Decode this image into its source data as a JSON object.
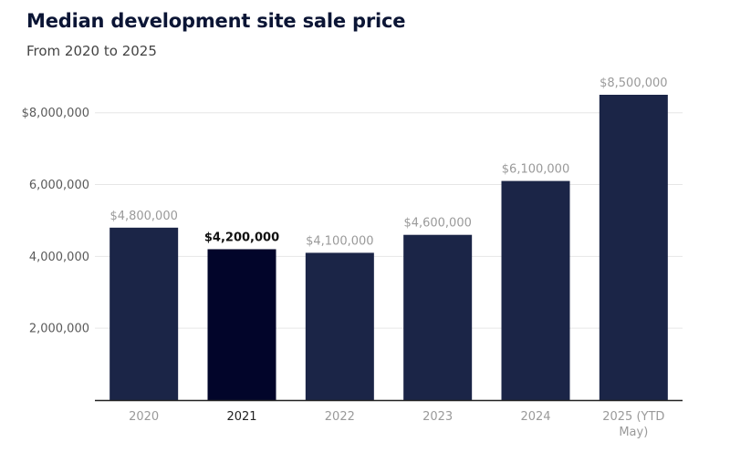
{
  "chart_data": {
    "type": "bar",
    "title": "Median development site sale price",
    "subtitle": "From 2020 to 2025",
    "categories": [
      "2020",
      "2021",
      "2022",
      "2023",
      "2024",
      "2025 (YTD May)"
    ],
    "values": [
      4800000,
      4200000,
      4100000,
      4600000,
      6100000,
      8500000
    ],
    "value_labels": [
      "$4,800,000",
      "$4,200,000",
      "$4,100,000",
      "$4,600,000",
      "$6,100,000",
      "$8,500,000"
    ],
    "y_ticks": [
      2000000,
      4000000,
      6000000,
      8000000
    ],
    "y_tick_labels": [
      "2,000,000",
      "4,000,000",
      "6,000,000",
      "$8,000,000"
    ],
    "ylim": [
      0,
      8500000
    ],
    "grid": true,
    "highlighted_category": "2021",
    "xlabel": "",
    "ylabel": "",
    "colors": {
      "bar": "#1b2547",
      "bar_highlight": "#02052a",
      "grid": "#e6e6e6",
      "axis": "#222222"
    }
  }
}
